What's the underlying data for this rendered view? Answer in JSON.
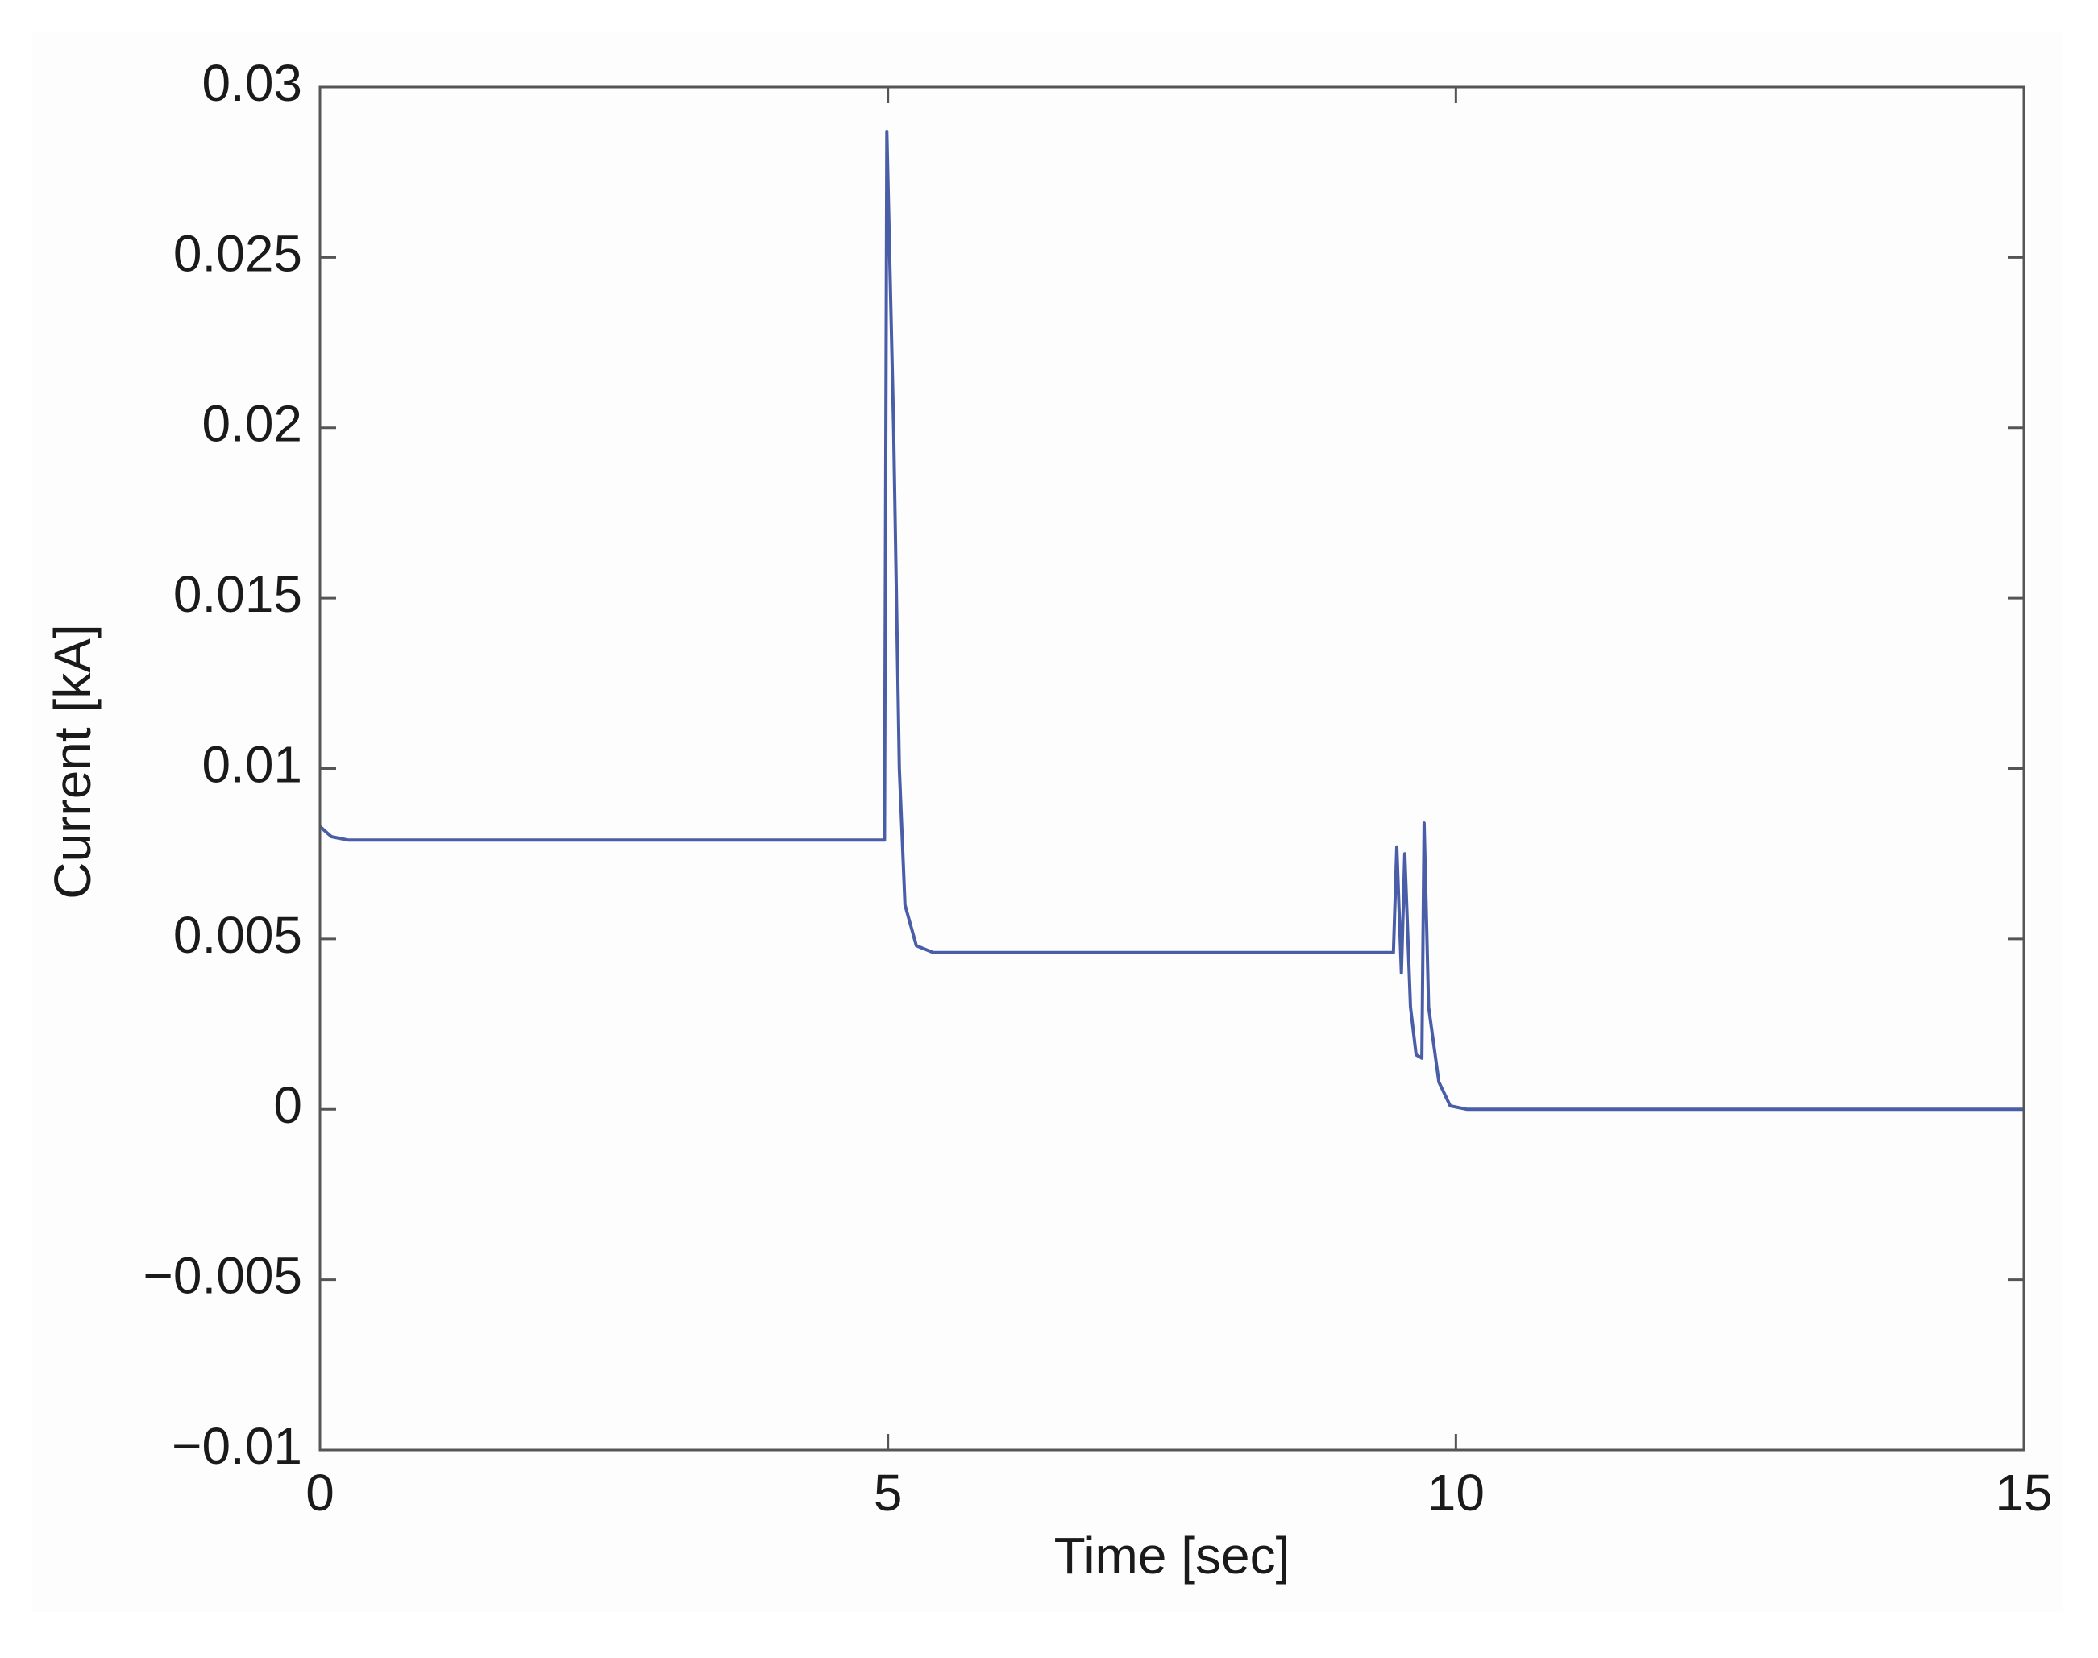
{
  "chart_data": {
    "type": "line",
    "xlabel": "Time [sec]",
    "ylabel": "Current [kA]",
    "color": "#4a5ea8",
    "x": [
      0,
      0.1,
      0.25,
      4.97,
      4.99,
      5.05,
      5.1,
      5.15,
      5.25,
      5.4,
      9.45,
      9.48,
      9.52,
      9.55,
      9.6,
      9.65,
      9.7,
      9.72,
      9.76,
      9.85,
      9.95,
      10.1,
      15
    ],
    "values": [
      0.0083,
      0.008,
      0.0079,
      0.0079,
      0.0287,
      0.02,
      0.01,
      0.006,
      0.0048,
      0.0046,
      0.0046,
      0.0077,
      0.004,
      0.0075,
      0.003,
      0.0016,
      0.0015,
      0.0084,
      0.003,
      0.0008,
      0.0001,
      0,
      0
    ],
    "xlim": [
      0,
      15
    ],
    "xticks": [
      0,
      5,
      10,
      15
    ],
    "ylim": [
      -0.01,
      0.03
    ],
    "yticks": [
      {
        "value": -0.01,
        "label": "−0.01"
      },
      {
        "value": -0.005,
        "label": "−0.005"
      },
      0,
      0.005,
      0.01,
      0.015,
      0.02,
      0.025,
      0.03
    ],
    "grid": false
  }
}
